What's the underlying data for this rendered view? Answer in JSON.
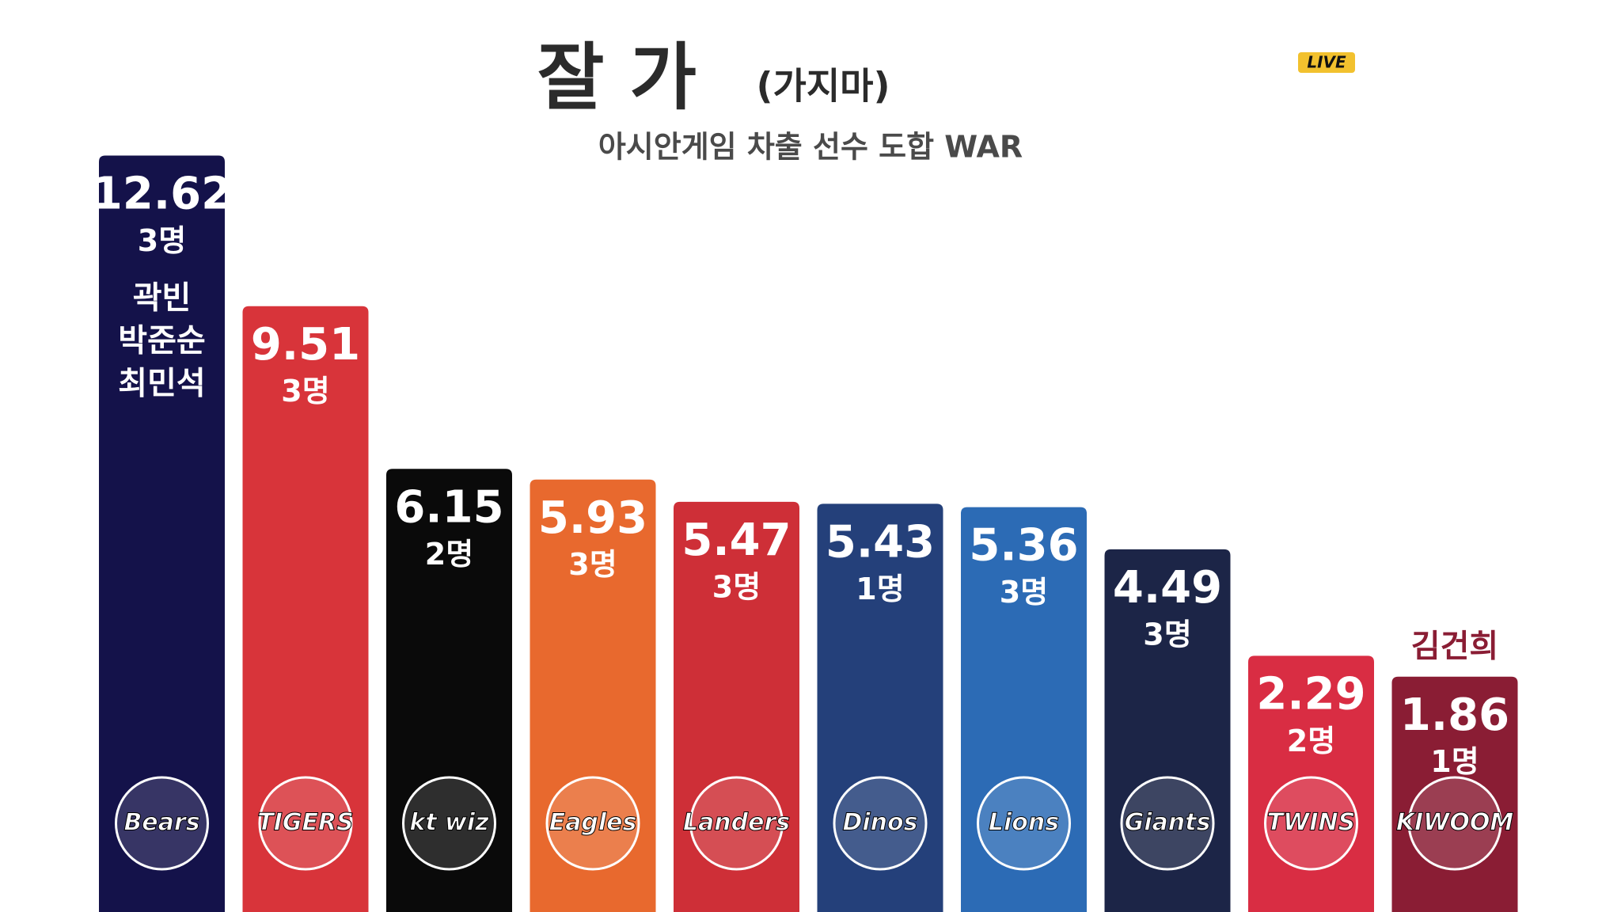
{
  "badge": "LIVE",
  "chart_data": {
    "type": "bar",
    "title": "잘 가",
    "title_note": "(가지마)",
    "subtitle": "아시안게임 차출 선수 도합 WAR",
    "categories": [
      "Bears",
      "TIGERS",
      "kt wiz",
      "Eagles",
      "Landers",
      "Dinos",
      "Lions",
      "Giants",
      "TWINS",
      "KIWOOM"
    ],
    "values": [
      12.62,
      9.51,
      6.15,
      5.93,
      5.47,
      5.43,
      5.36,
      4.49,
      2.29,
      1.86
    ],
    "counts": [
      "3명",
      "3명",
      "2명",
      "3명",
      "3명",
      "1명",
      "3명",
      "3명",
      "2명",
      "1명"
    ],
    "notes": [
      [
        "곽빈",
        "박준순",
        "최민석"
      ],
      null,
      null,
      null,
      null,
      null,
      null,
      null,
      null,
      [
        "김건희"
      ]
    ],
    "colors": [
      "#14124a",
      "#d8343a",
      "#0a0a0a",
      "#e8692e",
      "#ce2f37",
      "#24407a",
      "#2c6bb5",
      "#1c2547",
      "#d92d43",
      "#8a1d34"
    ],
    "ylim": [
      -3,
      13.2
    ]
  }
}
